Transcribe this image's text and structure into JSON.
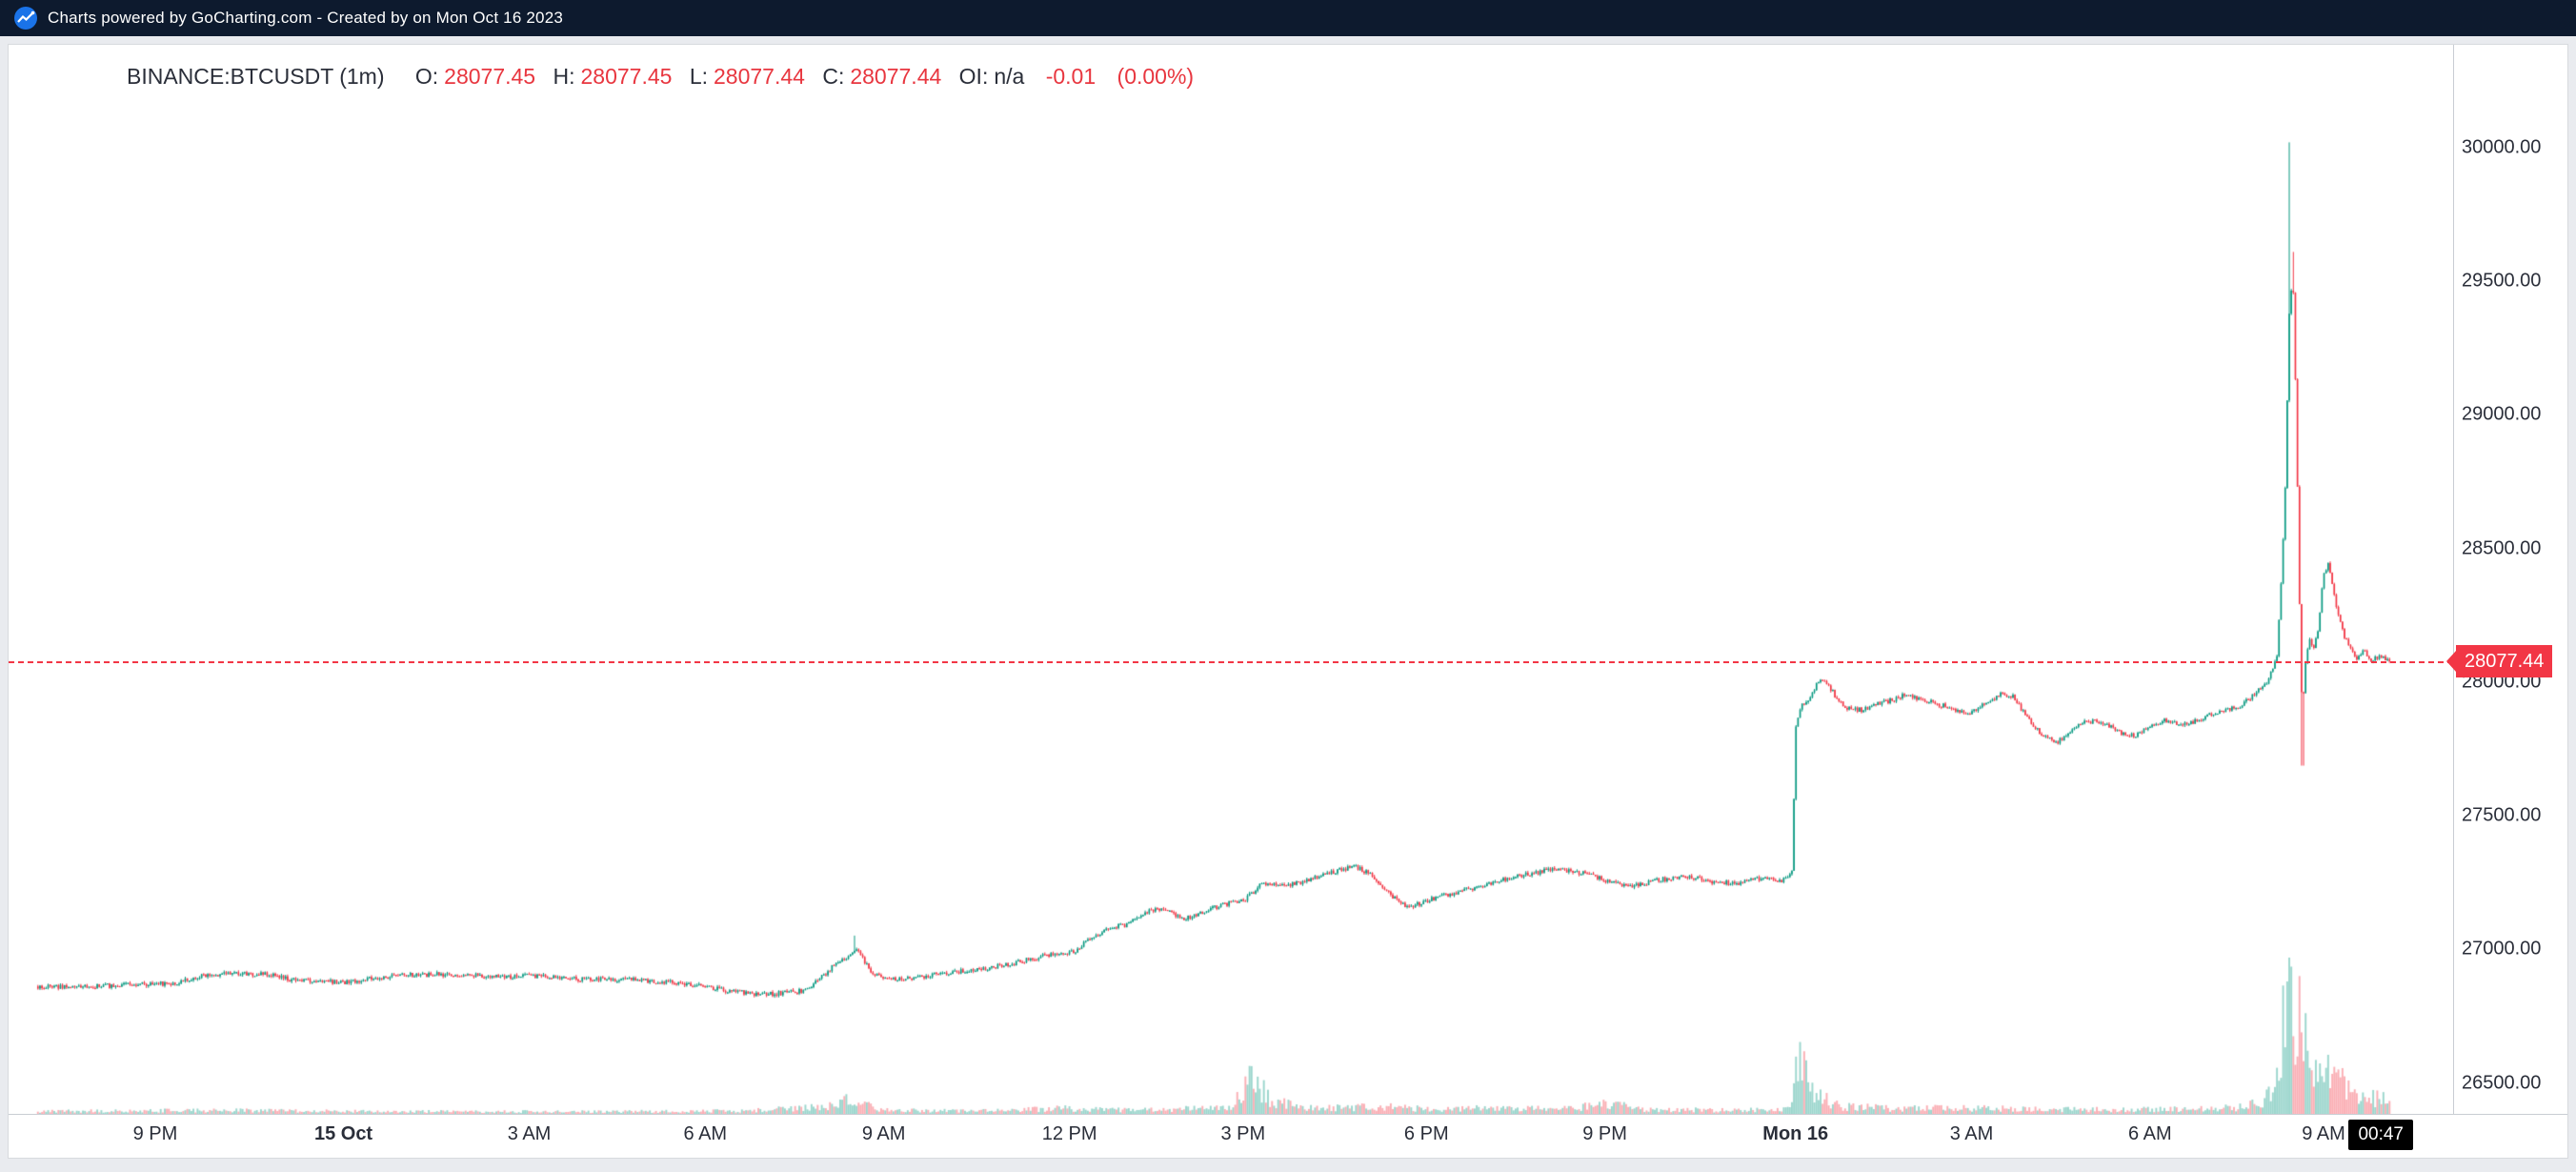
{
  "topbar": {
    "text": "Charts powered by GoCharting.com - Created by  on Mon Oct 16 2023"
  },
  "header": {
    "symbol": "BINANCE:BTCUSDT (1m)",
    "o_label": "O:",
    "o": "28077.45",
    "h_label": "H:",
    "h": "28077.45",
    "l_label": "L:",
    "l": "28077.44",
    "c_label": "C:",
    "c": "28077.44",
    "oi_label": "OI:",
    "oi": "n/a",
    "change": "-0.01",
    "change_pct": "(0.00%)"
  },
  "last_price": {
    "label": "28077.44"
  },
  "countdown": "00:47",
  "colors": {
    "up": "#089981",
    "down": "#f23645",
    "up_volume": "rgba(8,153,129,0.40)",
    "down_volume": "rgba(242,54,69,0.40)",
    "accent_red": "#f23645",
    "topbar_bg": "#0d1a2e",
    "logo_blue": "#1a73e8"
  },
  "chart_data": {
    "type": "candlestick",
    "symbol": "BINANCE:BTCUSDT",
    "interval": "1m",
    "exchange_prefix": "BINANCE",
    "last_price": 28077.44,
    "quote": {
      "open": 28077.45,
      "high": 28077.45,
      "low": 28077.44,
      "close": 28077.44,
      "oi": "n/a",
      "change": -0.01,
      "change_pct": 0.0
    },
    "price_min": 26385,
    "price_max": 30385,
    "y_ticks": [
      30000,
      29500,
      29000,
      28500,
      28000,
      27500,
      27000,
      26500
    ],
    "y_tick_labels": [
      "30000.00",
      "29500.00",
      "29000.00",
      "28500.00",
      "28000.00",
      "27500.00",
      "27000.00",
      "26500.00"
    ],
    "x_labels": [
      {
        "text": "9 PM",
        "t": 0.06,
        "bold": false
      },
      {
        "text": "15 Oct",
        "t": 0.137,
        "bold": true
      },
      {
        "text": "3 AM",
        "t": 0.213,
        "bold": false
      },
      {
        "text": "6 AM",
        "t": 0.285,
        "bold": false
      },
      {
        "text": "9 AM",
        "t": 0.358,
        "bold": false
      },
      {
        "text": "12 PM",
        "t": 0.434,
        "bold": false
      },
      {
        "text": "3 PM",
        "t": 0.505,
        "bold": false
      },
      {
        "text": "6 PM",
        "t": 0.58,
        "bold": false
      },
      {
        "text": "9 PM",
        "t": 0.653,
        "bold": false
      },
      {
        "text": "Mon 16",
        "t": 0.731,
        "bold": true
      },
      {
        "text": "3 AM",
        "t": 0.803,
        "bold": false
      },
      {
        "text": "6 AM",
        "t": 0.876,
        "bold": false
      },
      {
        "text": "9 AM",
        "t": 0.947,
        "bold": false
      }
    ],
    "candle_count": 1150,
    "first_t": 0.012,
    "last_t": 0.974,
    "noise": 9,
    "wick": 7,
    "volume_scale": 0.14,
    "price_path": [
      [
        0.0,
        26865
      ],
      [
        0.025,
        26858
      ],
      [
        0.05,
        26868
      ],
      [
        0.068,
        26875
      ],
      [
        0.078,
        26900
      ],
      [
        0.09,
        26912
      ],
      [
        0.105,
        26908
      ],
      [
        0.118,
        26882
      ],
      [
        0.137,
        26878
      ],
      [
        0.158,
        26902
      ],
      [
        0.18,
        26908
      ],
      [
        0.2,
        26898
      ],
      [
        0.213,
        26902
      ],
      [
        0.232,
        26890
      ],
      [
        0.255,
        26888
      ],
      [
        0.27,
        26878
      ],
      [
        0.282,
        26868
      ],
      [
        0.296,
        26842
      ],
      [
        0.31,
        26832
      ],
      [
        0.326,
        26846
      ],
      [
        0.34,
        26958
      ],
      [
        0.347,
        26995
      ],
      [
        0.353,
        26915
      ],
      [
        0.36,
        26888
      ],
      [
        0.372,
        26896
      ],
      [
        0.385,
        26915
      ],
      [
        0.398,
        26928
      ],
      [
        0.412,
        26950
      ],
      [
        0.426,
        26982
      ],
      [
        0.436,
        26992
      ],
      [
        0.443,
        27045
      ],
      [
        0.45,
        27078
      ],
      [
        0.458,
        27095
      ],
      [
        0.465,
        27142
      ],
      [
        0.472,
        27152
      ],
      [
        0.48,
        27112
      ],
      [
        0.488,
        27138
      ],
      [
        0.497,
        27168
      ],
      [
        0.506,
        27188
      ],
      [
        0.513,
        27248
      ],
      [
        0.521,
        27238
      ],
      [
        0.531,
        27256
      ],
      [
        0.541,
        27288
      ],
      [
        0.551,
        27312
      ],
      [
        0.559,
        27268
      ],
      [
        0.566,
        27198
      ],
      [
        0.573,
        27158
      ],
      [
        0.581,
        27186
      ],
      [
        0.593,
        27216
      ],
      [
        0.606,
        27246
      ],
      [
        0.619,
        27278
      ],
      [
        0.633,
        27302
      ],
      [
        0.646,
        27282
      ],
      [
        0.654,
        27256
      ],
      [
        0.663,
        27232
      ],
      [
        0.673,
        27256
      ],
      [
        0.685,
        27276
      ],
      [
        0.696,
        27256
      ],
      [
        0.706,
        27246
      ],
      [
        0.716,
        27266
      ],
      [
        0.725,
        27256
      ],
      [
        0.7295,
        27282
      ],
      [
        0.7312,
        27830
      ],
      [
        0.733,
        27905
      ],
      [
        0.736,
        27935
      ],
      [
        0.7395,
        27988
      ],
      [
        0.743,
        28012
      ],
      [
        0.747,
        27952
      ],
      [
        0.752,
        27902
      ],
      [
        0.758,
        27896
      ],
      [
        0.764,
        27916
      ],
      [
        0.77,
        27932
      ],
      [
        0.776,
        27952
      ],
      [
        0.782,
        27940
      ],
      [
        0.79,
        27916
      ],
      [
        0.797,
        27896
      ],
      [
        0.803,
        27886
      ],
      [
        0.809,
        27926
      ],
      [
        0.815,
        27956
      ],
      [
        0.82,
        27950
      ],
      [
        0.826,
        27862
      ],
      [
        0.832,
        27802
      ],
      [
        0.838,
        27776
      ],
      [
        0.844,
        27820
      ],
      [
        0.85,
        27856
      ],
      [
        0.857,
        27846
      ],
      [
        0.864,
        27812
      ],
      [
        0.87,
        27796
      ],
      [
        0.876,
        27836
      ],
      [
        0.882,
        27856
      ],
      [
        0.888,
        27846
      ],
      [
        0.894,
        27852
      ],
      [
        0.9,
        27876
      ],
      [
        0.906,
        27892
      ],
      [
        0.912,
        27906
      ],
      [
        0.918,
        27950
      ],
      [
        0.924,
        28002
      ],
      [
        0.928,
        28092
      ],
      [
        0.931,
        28620
      ],
      [
        0.933,
        29390
      ],
      [
        0.9345,
        29520
      ],
      [
        0.9358,
        29010
      ],
      [
        0.937,
        28360
      ],
      [
        0.9382,
        27885
      ],
      [
        0.9395,
        28055
      ],
      [
        0.941,
        28165
      ],
      [
        0.943,
        28125
      ],
      [
        0.945,
        28205
      ],
      [
        0.947,
        28405
      ],
      [
        0.949,
        28445
      ],
      [
        0.951,
        28335
      ],
      [
        0.953,
        28255
      ],
      [
        0.9555,
        28165
      ],
      [
        0.958,
        28135
      ],
      [
        0.9605,
        28092
      ],
      [
        0.9635,
        28122
      ],
      [
        0.9665,
        28082
      ],
      [
        0.97,
        28098
      ],
      [
        0.974,
        28077.44
      ]
    ],
    "volume_path": [
      [
        0.0,
        0.02
      ],
      [
        0.09,
        0.03
      ],
      [
        0.15,
        0.02
      ],
      [
        0.25,
        0.02
      ],
      [
        0.3,
        0.025
      ],
      [
        0.335,
        0.06
      ],
      [
        0.345,
        0.12
      ],
      [
        0.356,
        0.03
      ],
      [
        0.4,
        0.025
      ],
      [
        0.43,
        0.045
      ],
      [
        0.46,
        0.03
      ],
      [
        0.5,
        0.05
      ],
      [
        0.509,
        0.3
      ],
      [
        0.516,
        0.12
      ],
      [
        0.53,
        0.045
      ],
      [
        0.56,
        0.06
      ],
      [
        0.58,
        0.04
      ],
      [
        0.6,
        0.05
      ],
      [
        0.62,
        0.04
      ],
      [
        0.645,
        0.06
      ],
      [
        0.655,
        0.1
      ],
      [
        0.668,
        0.04
      ],
      [
        0.7,
        0.03
      ],
      [
        0.725,
        0.035
      ],
      [
        0.73,
        0.1
      ],
      [
        0.7315,
        0.62
      ],
      [
        0.7335,
        0.4
      ],
      [
        0.7365,
        0.25
      ],
      [
        0.74,
        0.15
      ],
      [
        0.745,
        0.1
      ],
      [
        0.752,
        0.06
      ],
      [
        0.77,
        0.045
      ],
      [
        0.8,
        0.05
      ],
      [
        0.83,
        0.04
      ],
      [
        0.86,
        0.035
      ],
      [
        0.89,
        0.04
      ],
      [
        0.915,
        0.06
      ],
      [
        0.925,
        0.15
      ],
      [
        0.9295,
        0.55
      ],
      [
        0.933,
        1.0
      ],
      [
        0.9345,
        0.85
      ],
      [
        0.936,
        0.7
      ],
      [
        0.938,
        0.9
      ],
      [
        0.94,
        0.6
      ],
      [
        0.943,
        0.45
      ],
      [
        0.946,
        0.4
      ],
      [
        0.949,
        0.35
      ],
      [
        0.952,
        0.28
      ],
      [
        0.956,
        0.22
      ],
      [
        0.96,
        0.18
      ],
      [
        0.965,
        0.14
      ],
      [
        0.97,
        0.12
      ],
      [
        0.974,
        0.1
      ]
    ],
    "spikes": [
      {
        "t": 0.9332,
        "high": 30020
      },
      {
        "t": 0.9345,
        "high": 29610
      },
      {
        "t": 0.346,
        "high": 27052
      },
      {
        "t": 0.9383,
        "low": 27688
      }
    ]
  }
}
